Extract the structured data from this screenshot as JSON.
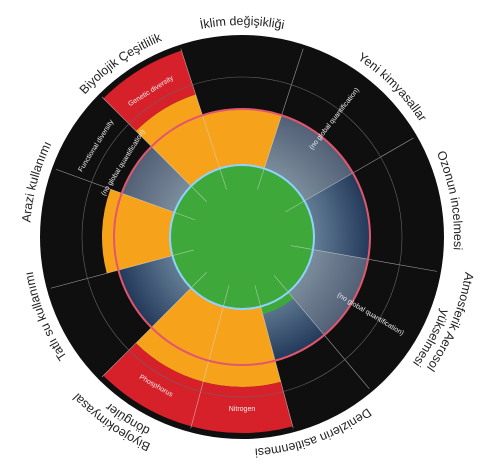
{
  "labels": [
    {
      "text": "İklim değişikliği"
    },
    {
      "text": "Yeni kimyasallar"
    },
    {
      "text": "Ozonun incelmesi"
    },
    {
      "text": "Atmosferik Aerosol"
    },
    {
      "text": "yükselmesi"
    },
    {
      "text": "Denizlerin asitlenmesi"
    },
    {
      "text": "Biyojeokimyasal"
    },
    {
      "text": "döngüler"
    },
    {
      "text": "Tatlı su kullanımı"
    },
    {
      "text": "Arazi kullanımı"
    },
    {
      "text": "Biyolojik Çeşitlilik"
    }
  ],
  "inner_labels": [
    {
      "text": "Genetic diversity"
    },
    {
      "text": "Functional diversity"
    },
    {
      "text": "(no global quantification)"
    },
    {
      "text": "(no global quantification)"
    },
    {
      "text": "(no global quantification)"
    },
    {
      "text": "Phosphorus"
    },
    {
      "text": "Nitrogen"
    }
  ]
}
